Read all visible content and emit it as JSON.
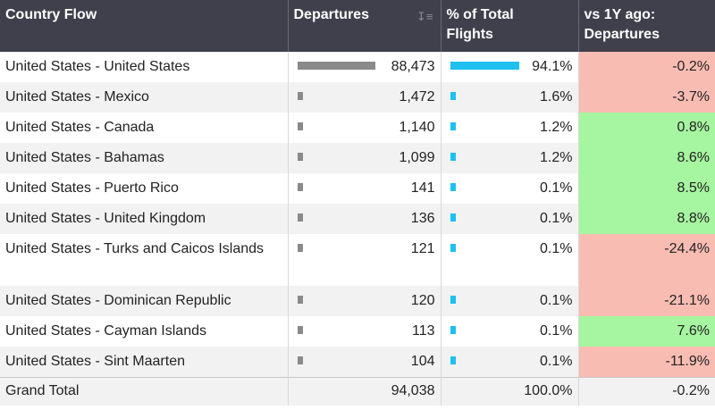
{
  "chart_data": {
    "type": "table",
    "columns": [
      "Country Flow",
      "Departures",
      "% of Total Flights",
      "vs 1Y ago: Departures"
    ],
    "rows": [
      {
        "flow": "United States - United States",
        "departures": 88473,
        "departures_label": "88,473",
        "pct": 94.1,
        "pct_label": "94.1%",
        "yoy": -0.2,
        "yoy_label": "-0.2%"
      },
      {
        "flow": "United States - Mexico",
        "departures": 1472,
        "departures_label": "1,472",
        "pct": 1.6,
        "pct_label": "1.6%",
        "yoy": -3.7,
        "yoy_label": "-3.7%"
      },
      {
        "flow": "United States - Canada",
        "departures": 1140,
        "departures_label": "1,140",
        "pct": 1.2,
        "pct_label": "1.2%",
        "yoy": 0.8,
        "yoy_label": "0.8%"
      },
      {
        "flow": "United States - Bahamas",
        "departures": 1099,
        "departures_label": "1,099",
        "pct": 1.2,
        "pct_label": "1.2%",
        "yoy": 8.6,
        "yoy_label": "8.6%"
      },
      {
        "flow": "United States - Puerto Rico",
        "departures": 141,
        "departures_label": "141",
        "pct": 0.1,
        "pct_label": "0.1%",
        "yoy": 8.5,
        "yoy_label": "8.5%"
      },
      {
        "flow": "United States - United Kingdom",
        "departures": 136,
        "departures_label": "136",
        "pct": 0.1,
        "pct_label": "0.1%",
        "yoy": 8.8,
        "yoy_label": "8.8%"
      },
      {
        "flow": "United States - Turks and Caicos Islands",
        "departures": 121,
        "departures_label": "121",
        "pct": 0.1,
        "pct_label": "0.1%",
        "yoy": -24.4,
        "yoy_label": "-24.4%"
      },
      {
        "flow": "United States - Dominican Republic",
        "departures": 120,
        "departures_label": "120",
        "pct": 0.1,
        "pct_label": "0.1%",
        "yoy": -21.1,
        "yoy_label": "-21.1%"
      },
      {
        "flow": "United States - Cayman Islands",
        "departures": 113,
        "departures_label": "113",
        "pct": 0.1,
        "pct_label": "0.1%",
        "yoy": 7.6,
        "yoy_label": "7.6%"
      },
      {
        "flow": "United States - Sint Maarten",
        "departures": 104,
        "departures_label": "104",
        "pct": 0.1,
        "pct_label": "0.1%",
        "yoy": -11.9,
        "yoy_label": "-11.9%"
      }
    ],
    "grand_total": {
      "label": "Grand Total",
      "departures_label": "94,038",
      "pct_label": "100.0%",
      "yoy_label": "-0.2%"
    }
  },
  "header": {
    "col1": "Country Flow",
    "col2": "Departures",
    "col3a": "% of Total",
    "col3b": "Flights",
    "col4a": "vs 1Y ago:",
    "col4b": "Departures"
  },
  "colors": {
    "header_bg": "#40404d",
    "departures_bar": "#8a8a8a",
    "pct_bar": "#1ec0f0",
    "negative_bg": "#f9bcb3",
    "positive_bg": "#a6f5a0"
  },
  "icons": {
    "sort": "sort-descending-icon"
  }
}
